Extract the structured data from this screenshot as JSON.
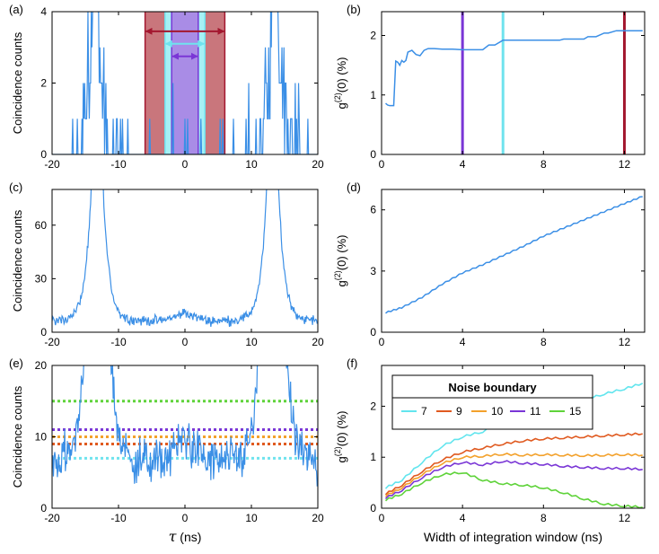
{
  "colors": {
    "data_blue": "#3b8fe6",
    "dark_red": "#a3172f",
    "red_fill": "#c9767c",
    "cyan": "#6fe3ee",
    "cyan_fill": "#a6f1f5",
    "purple": "#7a36d6",
    "purple_fill": "#a98ce6",
    "orange_red": "#e05a20",
    "orange": "#f3a12b",
    "green": "#5fd33a",
    "legend_cyan": "#62e5ee"
  },
  "chart_data": [
    {
      "id": "a",
      "panel_label": "(a)",
      "type": "line",
      "xlabel": "",
      "ylabel": "Coincidence counts",
      "xlim": [
        -20,
        20
      ],
      "ylim": [
        0,
        4
      ],
      "xticks": [
        -20,
        -10,
        0,
        10,
        20
      ],
      "yticks": [
        0,
        2,
        4
      ],
      "series": [
        {
          "name": "coincidences",
          "description": "histogram peaks near -13 and +13 ns, sparse 1-count events elsewhere"
        }
      ],
      "bands": [
        {
          "name": "window-12ns",
          "x": [
            -6,
            6
          ]
        },
        {
          "name": "window-6ns",
          "x": [
            -3,
            3
          ]
        },
        {
          "name": "window-4ns",
          "x": [
            -2,
            2
          ]
        }
      ],
      "arrows": [
        {
          "name": "arrow-12ns",
          "x": [
            -6,
            6
          ],
          "y": 3.45
        },
        {
          "name": "arrow-6ns",
          "x": [
            -3,
            3
          ],
          "y": 3.1
        },
        {
          "name": "arrow-4ns",
          "x": [
            -2,
            2
          ],
          "y": 2.75
        }
      ]
    },
    {
      "id": "b",
      "panel_label": "(b)",
      "type": "line",
      "xlabel": "",
      "ylabel": "g(2)(0)  (%)",
      "xlim": [
        0,
        13
      ],
      "ylim": [
        0,
        2.4
      ],
      "xticks": [
        0,
        4,
        8,
        12
      ],
      "yticks": [
        0,
        1,
        2
      ],
      "series": [
        {
          "name": "g2",
          "x": [
            0.2,
            0.3,
            0.4,
            0.6,
            0.7,
            0.8,
            0.9,
            1.0,
            1.1,
            1.2,
            1.3,
            1.5,
            1.7,
            1.9,
            2.1,
            2.3,
            2.6,
            3.0,
            3.5,
            4.0,
            4.5,
            4.8,
            5.0,
            5.3,
            5.6,
            6.0,
            6.5,
            7.0,
            7.5,
            8.0,
            8.2,
            8.6,
            8.8,
            9.0,
            9.6,
            10.0,
            10.2,
            10.6,
            11.0,
            11.2,
            11.6,
            12.0,
            12.5,
            12.9
          ],
          "y": [
            0.86,
            0.83,
            0.82,
            0.82,
            1.57,
            1.55,
            1.5,
            1.58,
            1.55,
            1.58,
            1.72,
            1.75,
            1.68,
            1.66,
            1.75,
            1.78,
            1.78,
            1.77,
            1.77,
            1.76,
            1.76,
            1.76,
            1.76,
            1.84,
            1.84,
            1.92,
            1.92,
            1.92,
            1.92,
            1.92,
            1.92,
            1.92,
            1.92,
            1.94,
            1.94,
            1.94,
            1.98,
            1.98,
            2.04,
            2.04,
            2.08,
            2.08,
            2.08,
            2.08
          ]
        }
      ],
      "vlines": [
        {
          "name": "window-4ns",
          "x": 4
        },
        {
          "name": "window-6ns",
          "x": 6
        },
        {
          "name": "window-12ns",
          "x": 12
        }
      ]
    },
    {
      "id": "c",
      "panel_label": "(c)",
      "type": "line",
      "xlabel": "",
      "ylabel": "Coincidence counts",
      "xlim": [
        -20,
        20
      ],
      "ylim": [
        0,
        80
      ],
      "xticks": [
        -20,
        -10,
        0,
        10,
        20
      ],
      "yticks": [
        0,
        30,
        60
      ],
      "series": [
        {
          "name": "accumulated-coincidences",
          "description": "noise floor ~5-10 counts, peaks at -13 and +13 ns off-scale, small bump near 0"
        }
      ]
    },
    {
      "id": "d",
      "panel_label": "(d)",
      "type": "line",
      "xlabel": "",
      "ylabel": "g(2)(0)  (%)",
      "xlim": [
        0,
        13
      ],
      "ylim": [
        0,
        7
      ],
      "xticks": [
        0,
        4,
        8,
        12
      ],
      "yticks": [
        0,
        3,
        6
      ],
      "series": [
        {
          "name": "g2",
          "x": [
            0.2,
            1,
            2,
            3,
            4,
            5,
            6,
            7,
            8,
            9,
            10,
            11,
            12,
            12.9
          ],
          "y": [
            0.95,
            1.2,
            1.7,
            2.35,
            2.9,
            3.3,
            3.75,
            4.2,
            4.7,
            5.1,
            5.5,
            5.9,
            6.3,
            6.65
          ]
        }
      ]
    },
    {
      "id": "e",
      "panel_label": "(e)",
      "type": "line",
      "xlabel": "τ (ns)",
      "ylabel": "Coincidence counts",
      "xlim": [
        -20,
        20
      ],
      "ylim": [
        0,
        20
      ],
      "xticks": [
        -20,
        -10,
        0,
        10,
        20
      ],
      "yticks": [
        0,
        10,
        20
      ],
      "series": [
        {
          "name": "coincidences-zoom",
          "description": "noise between ~2 and ~14 counts, peaks off-scale at -13 and +13 ns"
        }
      ],
      "hlines": [
        {
          "name": "boundary-7",
          "y": 7
        },
        {
          "name": "boundary-9",
          "y": 9
        },
        {
          "name": "boundary-10",
          "y": 10
        },
        {
          "name": "boundary-11",
          "y": 11
        },
        {
          "name": "boundary-15",
          "y": 15
        }
      ]
    },
    {
      "id": "f",
      "panel_label": "(f)",
      "type": "line",
      "xlabel": "Width of integration window (ns)",
      "ylabel": "g(2)(0)  (%)",
      "xlim": [
        0,
        13
      ],
      "ylim": [
        0,
        2.8
      ],
      "xticks": [
        0,
        4,
        8,
        12
      ],
      "yticks": [
        0,
        1,
        2
      ],
      "legend": {
        "title": "Noise boundary",
        "placement": "top"
      },
      "series": [
        {
          "name": "7",
          "x": [
            0.2,
            1,
            2,
            3,
            4,
            5,
            6,
            7,
            8,
            9,
            10,
            11,
            12,
            12.9
          ],
          "y": [
            0.4,
            0.55,
            0.9,
            1.22,
            1.4,
            1.5,
            1.68,
            1.8,
            1.92,
            2.02,
            2.12,
            2.24,
            2.34,
            2.45
          ]
        },
        {
          "name": "9",
          "x": [
            0.2,
            1,
            2,
            3,
            4,
            5,
            6,
            7,
            8,
            9,
            10,
            11,
            12,
            12.9
          ],
          "y": [
            0.28,
            0.45,
            0.72,
            0.95,
            1.1,
            1.18,
            1.26,
            1.32,
            1.36,
            1.38,
            1.4,
            1.42,
            1.44,
            1.46
          ]
        },
        {
          "name": "10",
          "x": [
            0.2,
            1,
            2,
            3,
            4,
            5,
            6,
            7,
            8,
            9,
            10,
            11,
            12,
            12.9
          ],
          "y": [
            0.24,
            0.4,
            0.66,
            0.88,
            1.0,
            1.02,
            1.06,
            1.04,
            1.05,
            1.04,
            1.03,
            1.04,
            1.05,
            1.04
          ]
        },
        {
          "name": "11",
          "x": [
            0.2,
            1,
            2,
            3,
            4,
            5,
            6,
            7,
            8,
            9,
            10,
            11,
            12,
            12.9
          ],
          "y": [
            0.2,
            0.35,
            0.6,
            0.8,
            0.9,
            0.85,
            0.92,
            0.88,
            0.86,
            0.82,
            0.8,
            0.78,
            0.78,
            0.76
          ]
        },
        {
          "name": "15",
          "x": [
            0.2,
            1,
            2,
            3,
            4,
            5,
            6,
            7,
            8,
            9,
            10,
            11,
            12,
            12.9
          ],
          "y": [
            0.16,
            0.28,
            0.5,
            0.66,
            0.7,
            0.55,
            0.48,
            0.45,
            0.4,
            0.3,
            0.18,
            0.08,
            0.04,
            0.02
          ]
        }
      ]
    }
  ]
}
